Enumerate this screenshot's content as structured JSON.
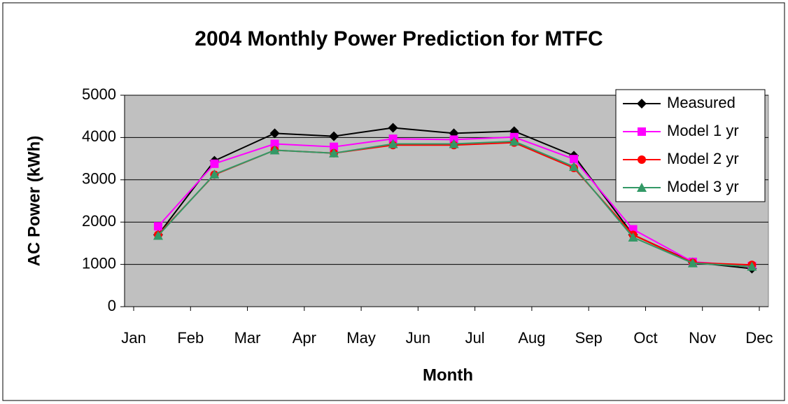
{
  "chart_data": {
    "type": "line",
    "title": "2004 Monthly Power Prediction for MTFC",
    "x_label": "Month",
    "y_label": "AC Power (kWh)",
    "x": [
      0.43,
      1.42,
      2.48,
      3.52,
      4.56,
      5.63,
      6.69,
      7.74,
      8.78,
      9.83,
      10.87
    ],
    "xlim": [
      -0.16,
      11.16
    ],
    "xticks": [
      {
        "value": 0,
        "label": "Jan"
      },
      {
        "value": 1,
        "label": "Feb"
      },
      {
        "value": 2,
        "label": "Mar"
      },
      {
        "value": 3,
        "label": "Apr"
      },
      {
        "value": 4,
        "label": "May"
      },
      {
        "value": 5,
        "label": "Jun"
      },
      {
        "value": 6,
        "label": "Jul"
      },
      {
        "value": 7,
        "label": "Aug"
      },
      {
        "value": 8,
        "label": "Sep"
      },
      {
        "value": 9,
        "label": "Oct"
      },
      {
        "value": 10,
        "label": "Nov"
      },
      {
        "value": 11,
        "label": "Dec"
      }
    ],
    "ylim": [
      0,
      5000
    ],
    "yticks": [
      0,
      1000,
      2000,
      3000,
      4000,
      5000
    ],
    "grid": true,
    "legend": "upper right",
    "series": [
      {
        "name": "Measured",
        "color": "#000000",
        "marker": "diamond",
        "values": [
          1700,
          3450,
          4100,
          4030,
          4230,
          4100,
          4150,
          3570,
          1700,
          1050,
          900
        ]
      },
      {
        "name": "Model 1 yr",
        "color": "#ff00ff",
        "marker": "square",
        "values": [
          1900,
          3380,
          3850,
          3780,
          3970,
          3950,
          4010,
          3490,
          1830,
          1060,
          960
        ]
      },
      {
        "name": "Model 2 yr",
        "color": "#ff0000",
        "marker": "circle",
        "values": [
          1700,
          3120,
          3700,
          3630,
          3820,
          3820,
          3880,
          3280,
          1700,
          1040,
          990
        ]
      },
      {
        "name": "Model 3 yr",
        "color": "#339966",
        "marker": "triangle",
        "values": [
          1680,
          3130,
          3700,
          3630,
          3850,
          3850,
          3910,
          3310,
          1640,
          1030,
          950
        ]
      }
    ]
  }
}
